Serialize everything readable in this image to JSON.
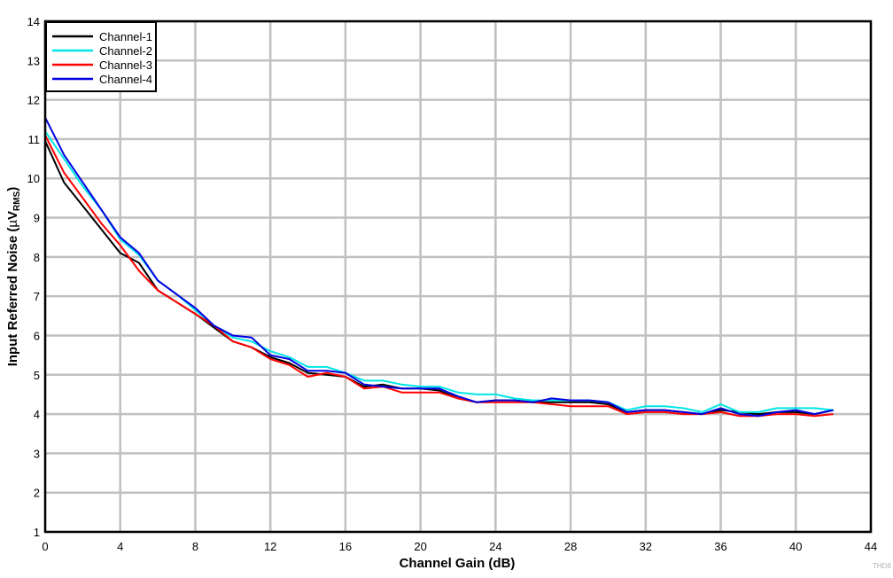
{
  "chart_data": {
    "type": "line",
    "title": "",
    "xlabel": "Channel Gain (dB)",
    "ylabel": "Input Referred Noise (µV_RMS)",
    "ylabel_parts": {
      "main": "Input Referred Noise (",
      "mu": "µ",
      "v": "V",
      "sub": "RMS",
      "close": ")"
    },
    "xlim": [
      0,
      44
    ],
    "ylim": [
      1,
      14
    ],
    "x_ticks": [
      0,
      4,
      8,
      12,
      16,
      20,
      24,
      28,
      32,
      36,
      40,
      44
    ],
    "y_ticks": [
      1,
      2,
      3,
      4,
      5,
      6,
      7,
      8,
      9,
      10,
      11,
      12,
      13,
      14
    ],
    "grid": true,
    "legend_position": "upper left",
    "x": [
      0,
      1,
      2,
      3,
      4,
      5,
      6,
      7,
      8,
      9,
      10,
      11,
      12,
      13,
      14,
      15,
      16,
      17,
      18,
      19,
      20,
      21,
      22,
      23,
      24,
      25,
      26,
      27,
      28,
      29,
      30,
      31,
      32,
      33,
      34,
      35,
      36,
      37,
      38,
      39,
      40,
      41,
      42
    ],
    "series": [
      {
        "name": "Channel-1",
        "color": "#000000",
        "values": [
          10.95,
          9.9,
          9.3,
          8.7,
          8.1,
          7.85,
          7.15,
          6.85,
          6.55,
          6.2,
          5.85,
          5.7,
          5.45,
          5.3,
          5.05,
          5.0,
          4.95,
          4.7,
          4.75,
          4.65,
          4.65,
          4.6,
          4.4,
          4.3,
          4.35,
          4.35,
          4.3,
          4.3,
          4.3,
          4.3,
          4.25,
          4.05,
          4.1,
          4.1,
          4.05,
          4.0,
          4.1,
          4.05,
          4.0,
          4.05,
          4.05,
          4.0,
          4.1
        ]
      },
      {
        "name": "Channel-2",
        "color": "#00E5E5",
        "values": [
          11.2,
          10.5,
          9.8,
          9.2,
          8.45,
          8.05,
          7.4,
          7.05,
          6.65,
          6.25,
          5.95,
          5.85,
          5.6,
          5.45,
          5.2,
          5.2,
          5.05,
          4.85,
          4.85,
          4.75,
          4.7,
          4.7,
          4.55,
          4.5,
          4.5,
          4.4,
          4.35,
          4.35,
          4.35,
          4.35,
          4.3,
          4.1,
          4.2,
          4.2,
          4.15,
          4.05,
          4.25,
          4.05,
          4.05,
          4.15,
          4.15,
          4.15,
          4.1
        ]
      },
      {
        "name": "Channel-3",
        "color": "#FF0000",
        "values": [
          11.1,
          10.15,
          9.5,
          8.85,
          8.3,
          7.65,
          7.15,
          6.85,
          6.55,
          6.25,
          5.85,
          5.7,
          5.4,
          5.25,
          4.95,
          5.05,
          4.95,
          4.65,
          4.7,
          4.55,
          4.55,
          4.55,
          4.4,
          4.3,
          4.3,
          4.3,
          4.3,
          4.25,
          4.2,
          4.2,
          4.2,
          4.0,
          4.05,
          4.05,
          4.0,
          4.0,
          4.05,
          3.95,
          3.95,
          4.0,
          4.0,
          3.95,
          4.0
        ]
      },
      {
        "name": "Channel-4",
        "color": "#0000E0",
        "values": [
          11.55,
          10.6,
          9.9,
          9.2,
          8.5,
          8.1,
          7.4,
          7.05,
          6.7,
          6.25,
          6.0,
          5.95,
          5.5,
          5.4,
          5.1,
          5.1,
          5.05,
          4.75,
          4.7,
          4.65,
          4.65,
          4.65,
          4.45,
          4.3,
          4.35,
          4.35,
          4.3,
          4.4,
          4.35,
          4.35,
          4.3,
          4.05,
          4.1,
          4.1,
          4.05,
          4.0,
          4.15,
          4.0,
          3.95,
          4.05,
          4.1,
          4.0,
          4.1
        ]
      }
    ],
    "watermark": "THD6"
  }
}
